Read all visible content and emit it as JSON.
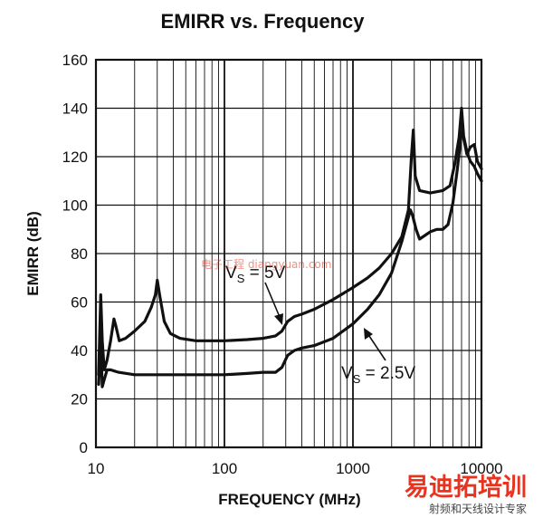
{
  "chart_data": {
    "type": "line",
    "title": "EMIRR vs. Frequency",
    "xlabel": "FREQUENCY (MHz)",
    "ylabel": "EMIRR (dB)",
    "x_scale": "log",
    "xlim": [
      10,
      10000
    ],
    "ylim": [
      0,
      160
    ],
    "x_ticks": [
      "10",
      "100",
      "1000",
      "10000"
    ],
    "y_ticks": [
      "0",
      "20",
      "40",
      "60",
      "80",
      "100",
      "120",
      "140",
      "160"
    ],
    "grid": true,
    "series": [
      {
        "annotation": {
          "prefix": "V",
          "sub": "S",
          "suffix": " = 5V"
        },
        "x": [
          10.5,
          10.9,
          11.2,
          11.6,
          12.2,
          13.0,
          13.8,
          14.3,
          15.2,
          17,
          20,
          24,
          27,
          29,
          30,
          31.5,
          34,
          38,
          45,
          60,
          100,
          150,
          200,
          250,
          280,
          310,
          350,
          400,
          500,
          700,
          1000,
          1300,
          1600,
          2000,
          2400,
          2700,
          2850,
          2950,
          3050,
          3300,
          4000,
          5000,
          5700,
          6200,
          6700,
          7000,
          7300,
          7700,
          8200,
          8800,
          9300,
          10000
        ],
        "y": [
          30,
          63,
          44,
          32,
          36,
          44,
          53,
          50,
          44,
          45,
          48,
          52,
          58,
          63,
          69,
          62,
          52,
          47,
          45,
          44,
          44,
          44.5,
          45,
          46,
          48,
          52,
          54,
          55,
          57,
          61,
          66,
          70,
          74,
          80,
          87,
          98,
          120,
          131,
          112,
          106,
          105,
          106,
          108,
          117,
          128,
          140,
          127,
          121,
          124,
          125,
          118,
          115
        ]
      },
      {
        "annotation": {
          "prefix": "V",
          "sub": "S",
          "suffix": " = 2.5V"
        },
        "x": [
          10.5,
          10.9,
          11.2,
          11.6,
          12.2,
          13,
          15,
          20,
          30,
          50,
          100,
          150,
          200,
          250,
          280,
          310,
          350,
          400,
          500,
          700,
          1000,
          1300,
          1600,
          2000,
          2400,
          2800,
          2900,
          3100,
          3300,
          4000,
          4500,
          5000,
          5500,
          6000,
          6500,
          7000,
          7300,
          7700,
          8200,
          8800,
          9300,
          10000
        ],
        "y": [
          26,
          45,
          25,
          28,
          32,
          32,
          31,
          30,
          30,
          30,
          30,
          30.5,
          31,
          31,
          33,
          38,
          40,
          41,
          42,
          45,
          51,
          57,
          63,
          72,
          85,
          98,
          96,
          90,
          86,
          89,
          90,
          90,
          92,
          101,
          115,
          130,
          128,
          122,
          118,
          116,
          113,
          110
        ]
      }
    ]
  },
  "watermark": {
    "overlay_text": "电子工程 diangyuan.com",
    "brand": "易迪拓培训",
    "brand_sub": "射频和天线设计专家",
    "brand_color": "#e8331f"
  }
}
